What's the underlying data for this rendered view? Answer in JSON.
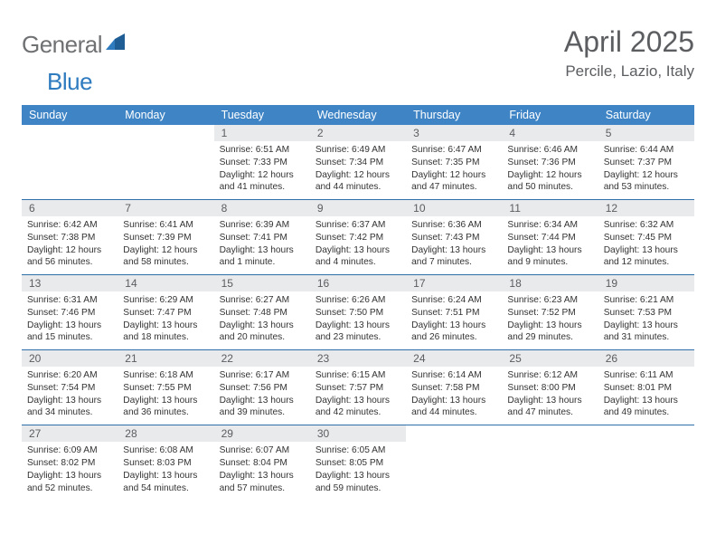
{
  "logo": {
    "word1": "General",
    "word2": "Blue"
  },
  "header": {
    "title": "April 2025",
    "location": "Percile, Lazio, Italy"
  },
  "colors": {
    "header_bar": "#3f85c6",
    "week_divider": "#2f6fa9",
    "daynum_bg": "#e8eaec",
    "text_muted": "#5b5d60",
    "logo_gray": "#6f7173",
    "logo_blue": "#2f7bbf"
  },
  "day_names": [
    "Sunday",
    "Monday",
    "Tuesday",
    "Wednesday",
    "Thursday",
    "Friday",
    "Saturday"
  ],
  "weeks": [
    [
      null,
      null,
      {
        "n": "1",
        "sr": "Sunrise: 6:51 AM",
        "ss": "Sunset: 7:33 PM",
        "d1": "Daylight: 12 hours",
        "d2": "and 41 minutes."
      },
      {
        "n": "2",
        "sr": "Sunrise: 6:49 AM",
        "ss": "Sunset: 7:34 PM",
        "d1": "Daylight: 12 hours",
        "d2": "and 44 minutes."
      },
      {
        "n": "3",
        "sr": "Sunrise: 6:47 AM",
        "ss": "Sunset: 7:35 PM",
        "d1": "Daylight: 12 hours",
        "d2": "and 47 minutes."
      },
      {
        "n": "4",
        "sr": "Sunrise: 6:46 AM",
        "ss": "Sunset: 7:36 PM",
        "d1": "Daylight: 12 hours",
        "d2": "and 50 minutes."
      },
      {
        "n": "5",
        "sr": "Sunrise: 6:44 AM",
        "ss": "Sunset: 7:37 PM",
        "d1": "Daylight: 12 hours",
        "d2": "and 53 minutes."
      }
    ],
    [
      {
        "n": "6",
        "sr": "Sunrise: 6:42 AM",
        "ss": "Sunset: 7:38 PM",
        "d1": "Daylight: 12 hours",
        "d2": "and 56 minutes."
      },
      {
        "n": "7",
        "sr": "Sunrise: 6:41 AM",
        "ss": "Sunset: 7:39 PM",
        "d1": "Daylight: 12 hours",
        "d2": "and 58 minutes."
      },
      {
        "n": "8",
        "sr": "Sunrise: 6:39 AM",
        "ss": "Sunset: 7:41 PM",
        "d1": "Daylight: 13 hours",
        "d2": "and 1 minute."
      },
      {
        "n": "9",
        "sr": "Sunrise: 6:37 AM",
        "ss": "Sunset: 7:42 PM",
        "d1": "Daylight: 13 hours",
        "d2": "and 4 minutes."
      },
      {
        "n": "10",
        "sr": "Sunrise: 6:36 AM",
        "ss": "Sunset: 7:43 PM",
        "d1": "Daylight: 13 hours",
        "d2": "and 7 minutes."
      },
      {
        "n": "11",
        "sr": "Sunrise: 6:34 AM",
        "ss": "Sunset: 7:44 PM",
        "d1": "Daylight: 13 hours",
        "d2": "and 9 minutes."
      },
      {
        "n": "12",
        "sr": "Sunrise: 6:32 AM",
        "ss": "Sunset: 7:45 PM",
        "d1": "Daylight: 13 hours",
        "d2": "and 12 minutes."
      }
    ],
    [
      {
        "n": "13",
        "sr": "Sunrise: 6:31 AM",
        "ss": "Sunset: 7:46 PM",
        "d1": "Daylight: 13 hours",
        "d2": "and 15 minutes."
      },
      {
        "n": "14",
        "sr": "Sunrise: 6:29 AM",
        "ss": "Sunset: 7:47 PM",
        "d1": "Daylight: 13 hours",
        "d2": "and 18 minutes."
      },
      {
        "n": "15",
        "sr": "Sunrise: 6:27 AM",
        "ss": "Sunset: 7:48 PM",
        "d1": "Daylight: 13 hours",
        "d2": "and 20 minutes."
      },
      {
        "n": "16",
        "sr": "Sunrise: 6:26 AM",
        "ss": "Sunset: 7:50 PM",
        "d1": "Daylight: 13 hours",
        "d2": "and 23 minutes."
      },
      {
        "n": "17",
        "sr": "Sunrise: 6:24 AM",
        "ss": "Sunset: 7:51 PM",
        "d1": "Daylight: 13 hours",
        "d2": "and 26 minutes."
      },
      {
        "n": "18",
        "sr": "Sunrise: 6:23 AM",
        "ss": "Sunset: 7:52 PM",
        "d1": "Daylight: 13 hours",
        "d2": "and 29 minutes."
      },
      {
        "n": "19",
        "sr": "Sunrise: 6:21 AM",
        "ss": "Sunset: 7:53 PM",
        "d1": "Daylight: 13 hours",
        "d2": "and 31 minutes."
      }
    ],
    [
      {
        "n": "20",
        "sr": "Sunrise: 6:20 AM",
        "ss": "Sunset: 7:54 PM",
        "d1": "Daylight: 13 hours",
        "d2": "and 34 minutes."
      },
      {
        "n": "21",
        "sr": "Sunrise: 6:18 AM",
        "ss": "Sunset: 7:55 PM",
        "d1": "Daylight: 13 hours",
        "d2": "and 36 minutes."
      },
      {
        "n": "22",
        "sr": "Sunrise: 6:17 AM",
        "ss": "Sunset: 7:56 PM",
        "d1": "Daylight: 13 hours",
        "d2": "and 39 minutes."
      },
      {
        "n": "23",
        "sr": "Sunrise: 6:15 AM",
        "ss": "Sunset: 7:57 PM",
        "d1": "Daylight: 13 hours",
        "d2": "and 42 minutes."
      },
      {
        "n": "24",
        "sr": "Sunrise: 6:14 AM",
        "ss": "Sunset: 7:58 PM",
        "d1": "Daylight: 13 hours",
        "d2": "and 44 minutes."
      },
      {
        "n": "25",
        "sr": "Sunrise: 6:12 AM",
        "ss": "Sunset: 8:00 PM",
        "d1": "Daylight: 13 hours",
        "d2": "and 47 minutes."
      },
      {
        "n": "26",
        "sr": "Sunrise: 6:11 AM",
        "ss": "Sunset: 8:01 PM",
        "d1": "Daylight: 13 hours",
        "d2": "and 49 minutes."
      }
    ],
    [
      {
        "n": "27",
        "sr": "Sunrise: 6:09 AM",
        "ss": "Sunset: 8:02 PM",
        "d1": "Daylight: 13 hours",
        "d2": "and 52 minutes."
      },
      {
        "n": "28",
        "sr": "Sunrise: 6:08 AM",
        "ss": "Sunset: 8:03 PM",
        "d1": "Daylight: 13 hours",
        "d2": "and 54 minutes."
      },
      {
        "n": "29",
        "sr": "Sunrise: 6:07 AM",
        "ss": "Sunset: 8:04 PM",
        "d1": "Daylight: 13 hours",
        "d2": "and 57 minutes."
      },
      {
        "n": "30",
        "sr": "Sunrise: 6:05 AM",
        "ss": "Sunset: 8:05 PM",
        "d1": "Daylight: 13 hours",
        "d2": "and 59 minutes."
      },
      null,
      null,
      null
    ]
  ]
}
